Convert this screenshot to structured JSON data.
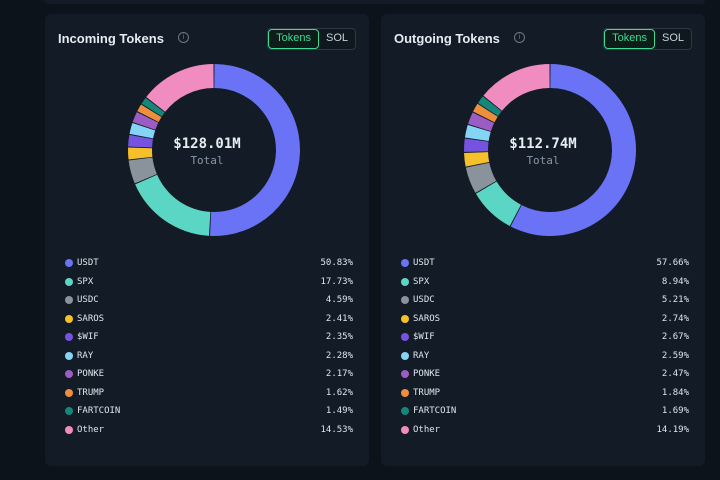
{
  "colors": {
    "USDT": "#6a73f5",
    "SPX": "#5cd6c4",
    "USDC": "#8a929c",
    "SAROS": "#f5c02a",
    "$WIF": "#7552e0",
    "RAY": "#84d4f5",
    "PONKE": "#9b5cc4",
    "TRUMP": "#ee8f3e",
    "FARTCOIN": "#14877a",
    "Other": "#f08cbf"
  },
  "incoming": {
    "title": "Incoming Tokens",
    "info_icon": "info-icon",
    "toggle": {
      "tokens_label": "Tokens",
      "sol_label": "SOL",
      "selected": "Tokens"
    },
    "total_value": "$128.01M",
    "total_label": "Total",
    "items": [
      {
        "name": "USDT",
        "pct_label": "50.83%",
        "pct": 50.83
      },
      {
        "name": "SPX",
        "pct_label": "17.73%",
        "pct": 17.73
      },
      {
        "name": "USDC",
        "pct_label": "4.59%",
        "pct": 4.59
      },
      {
        "name": "SAROS",
        "pct_label": "2.41%",
        "pct": 2.41
      },
      {
        "name": "$WIF",
        "pct_label": "2.35%",
        "pct": 2.35
      },
      {
        "name": "RAY",
        "pct_label": "2.28%",
        "pct": 2.28
      },
      {
        "name": "PONKE",
        "pct_label": "2.17%",
        "pct": 2.17
      },
      {
        "name": "TRUMP",
        "pct_label": "1.62%",
        "pct": 1.62
      },
      {
        "name": "FARTCOIN",
        "pct_label": "1.49%",
        "pct": 1.49
      },
      {
        "name": "Other",
        "pct_label": "14.53%",
        "pct": 14.53
      }
    ]
  },
  "outgoing": {
    "title": "Outgoing Tokens",
    "info_icon": "info-icon",
    "toggle": {
      "tokens_label": "Tokens",
      "sol_label": "SOL",
      "selected": "Tokens"
    },
    "total_value": "$112.74M",
    "total_label": "Total",
    "items": [
      {
        "name": "USDT",
        "pct_label": "57.66%",
        "pct": 57.66
      },
      {
        "name": "SPX",
        "pct_label": "8.94%",
        "pct": 8.94
      },
      {
        "name": "USDC",
        "pct_label": "5.21%",
        "pct": 5.21
      },
      {
        "name": "SAROS",
        "pct_label": "2.74%",
        "pct": 2.74
      },
      {
        "name": "$WIF",
        "pct_label": "2.67%",
        "pct": 2.67
      },
      {
        "name": "RAY",
        "pct_label": "2.59%",
        "pct": 2.59
      },
      {
        "name": "PONKE",
        "pct_label": "2.47%",
        "pct": 2.47
      },
      {
        "name": "TRUMP",
        "pct_label": "1.84%",
        "pct": 1.84
      },
      {
        "name": "FARTCOIN",
        "pct_label": "1.69%",
        "pct": 1.69
      },
      {
        "name": "Other",
        "pct_label": "14.19%",
        "pct": 14.19
      }
    ]
  }
}
